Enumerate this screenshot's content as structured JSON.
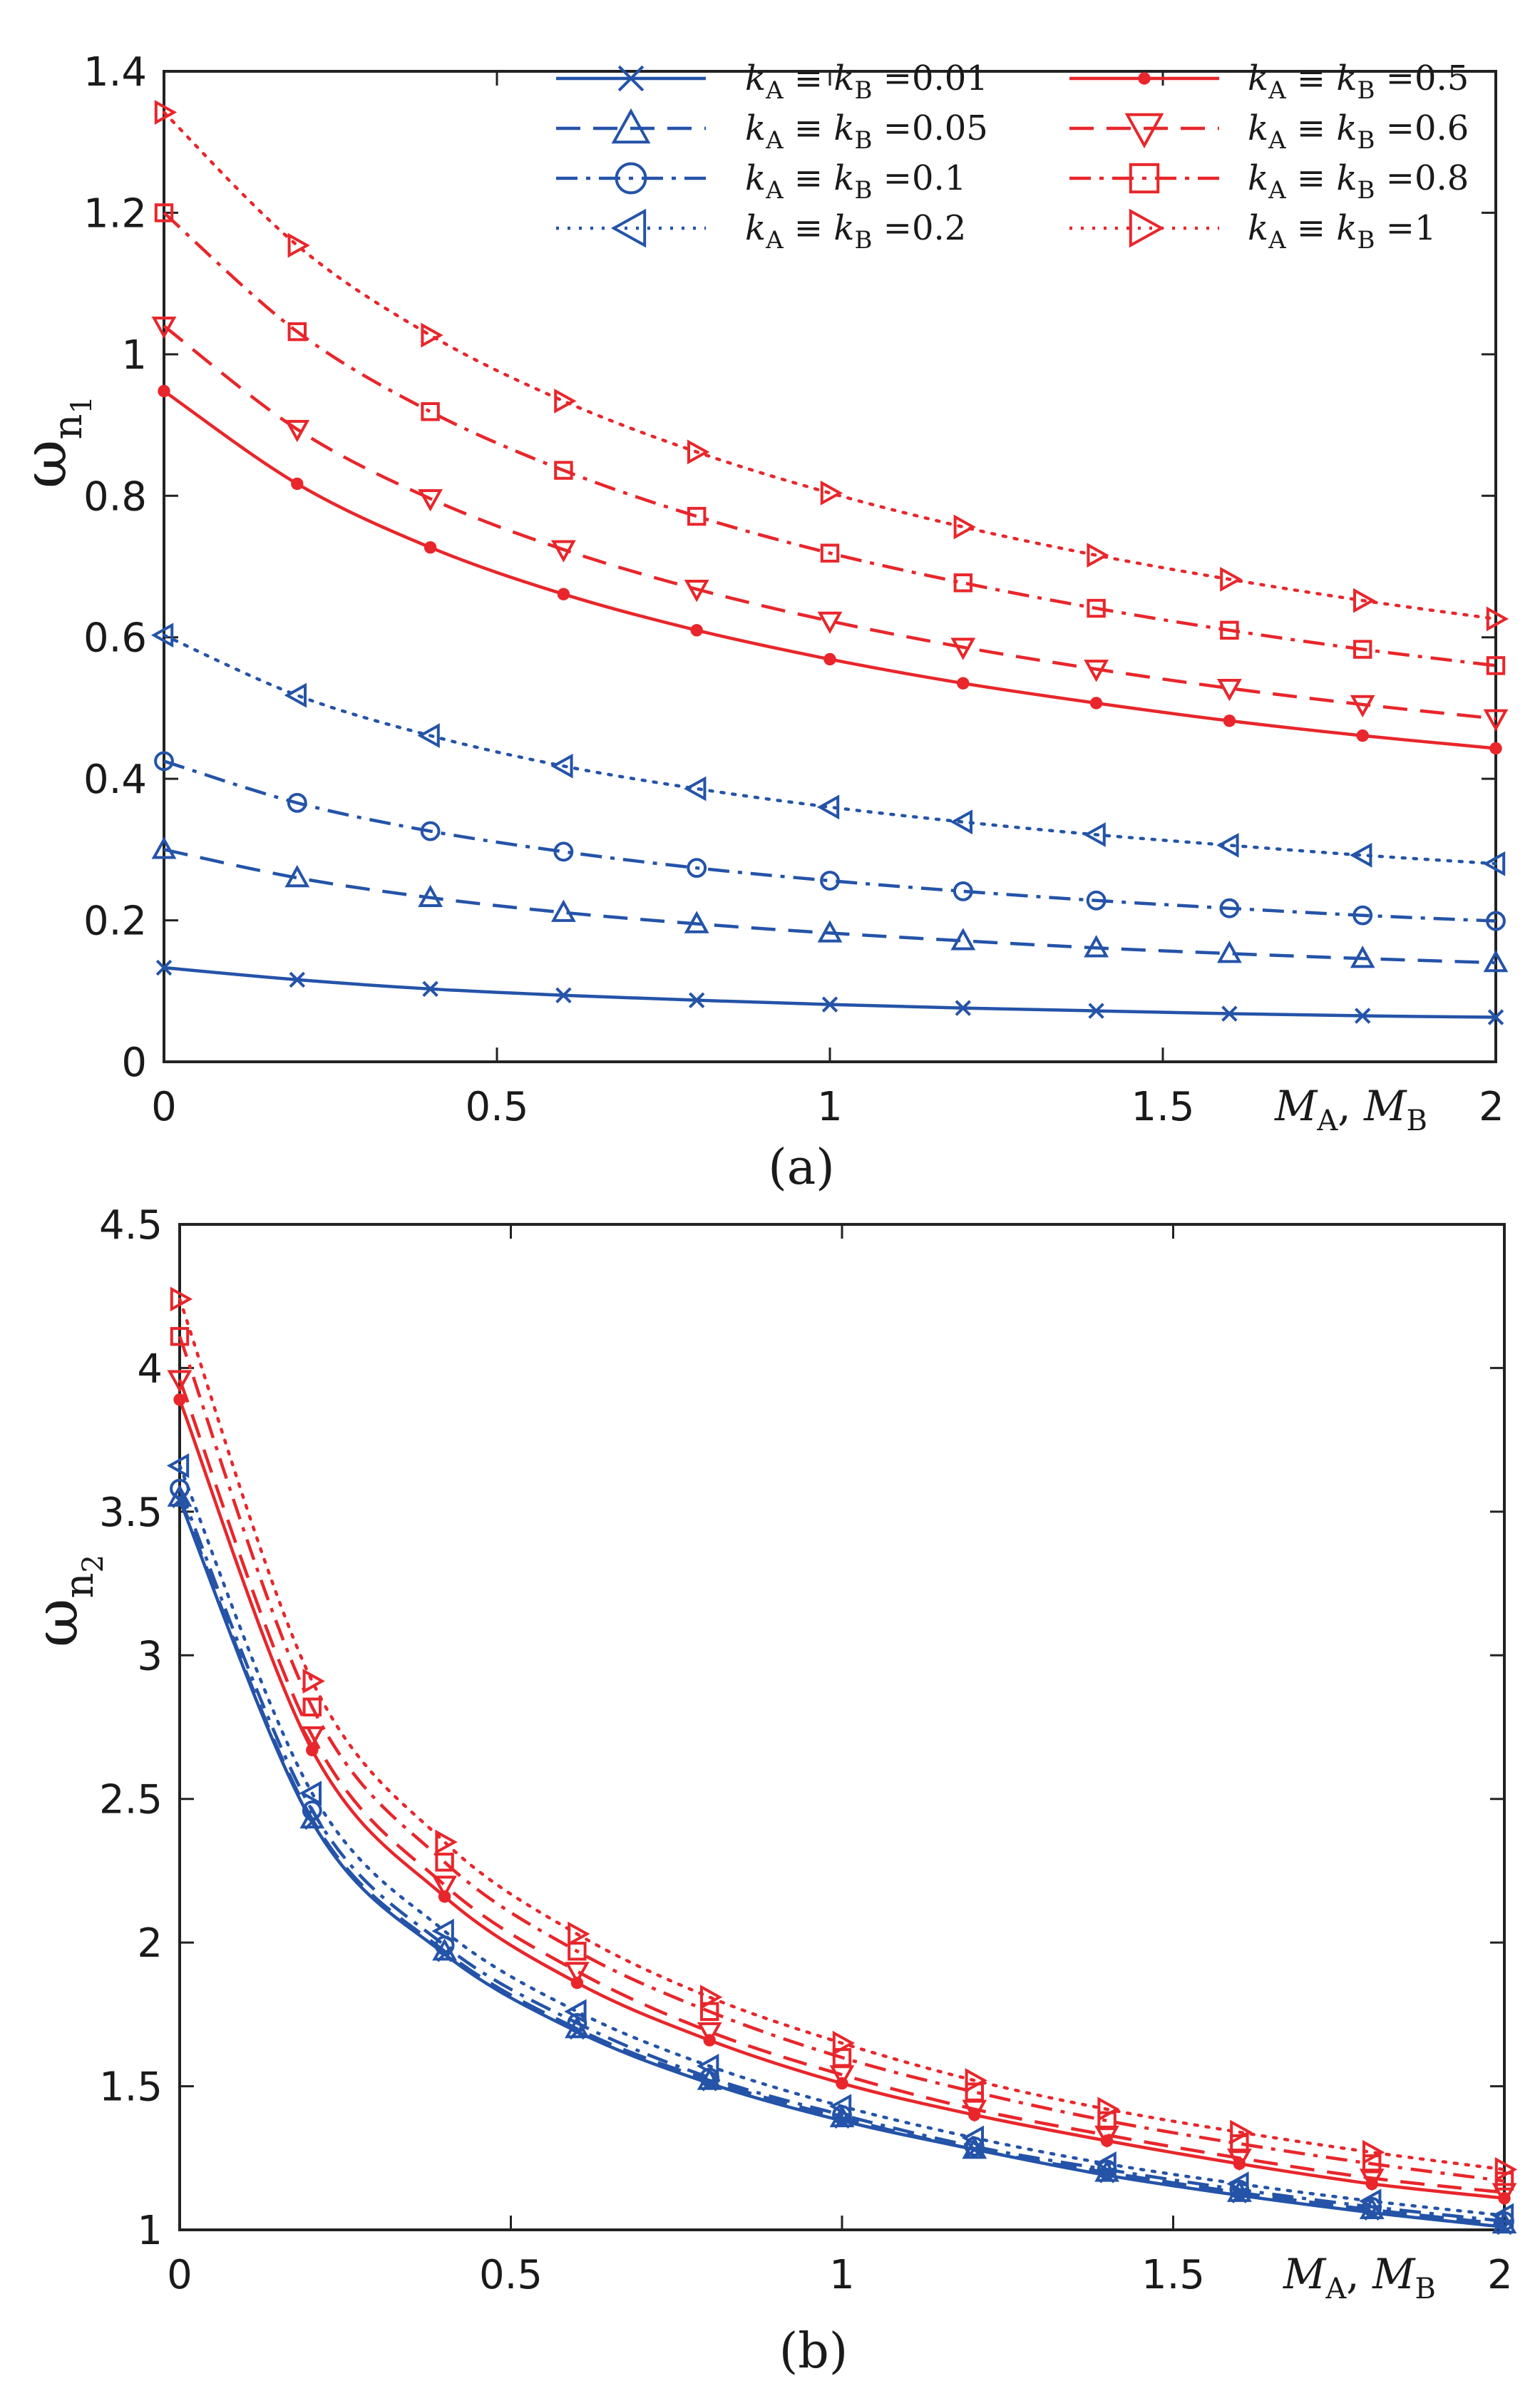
{
  "colors": {
    "blue": "#2453a8",
    "red": "#e8262b"
  },
  "chart_data": [
    {
      "id": "a",
      "type": "line",
      "caption": "(a)",
      "ylabel": "ω",
      "ylabel_sub": "n",
      "ylabel_subsub": "1",
      "xlabel": "M_A, M_B",
      "xlim": [
        0,
        2
      ],
      "ylim": [
        0,
        1.4
      ],
      "xticks": [
        0,
        0.5,
        1,
        1.5,
        2
      ],
      "xtick_labels": [
        "0",
        "0.5",
        "1",
        "1.5",
        ""
      ],
      "x_end_label": "2",
      "yticks": [
        0,
        0.2,
        0.4,
        0.6,
        0.8,
        1.0,
        1.2,
        1.4
      ],
      "ytick_labels": [
        "0",
        "0.2",
        "0.4",
        "0.6",
        "0.8",
        "1",
        "1.2",
        "1.4"
      ],
      "legend_position": "top-right",
      "x": [
        0,
        0.2,
        0.4,
        0.6,
        0.8,
        1.0,
        1.2,
        1.4,
        1.6,
        1.8,
        2.0
      ],
      "series": [
        {
          "name": "k_A ≡ k_B = 0.01",
          "legend_label": "k_A≡k_B=0.01",
          "color": "blue",
          "dash": "solid",
          "marker": "x",
          "values": [
            0.133,
            0.116,
            0.103,
            0.094,
            0.087,
            0.081,
            0.076,
            0.072,
            0.068,
            0.065,
            0.063
          ]
        },
        {
          "name": "k_A ≡ k_B = 0.05",
          "legend_label": "k_A≡k_B=0.05",
          "color": "blue",
          "dash": "dashed",
          "marker": "triangle-up",
          "values": [
            0.3,
            0.26,
            0.232,
            0.211,
            0.195,
            0.182,
            0.171,
            0.161,
            0.153,
            0.146,
            0.14
          ]
        },
        {
          "name": "k_A ≡ k_B = 0.1",
          "legend_label": "k_A≡k_B=0.1",
          "color": "blue",
          "dash": "dashdot",
          "marker": "circle",
          "values": [
            0.425,
            0.366,
            0.326,
            0.297,
            0.274,
            0.256,
            0.241,
            0.228,
            0.217,
            0.207,
            0.199
          ]
        },
        {
          "name": "k_A ≡ k_B = 0.2",
          "legend_label": "k_A≡k_B=0.2",
          "color": "blue",
          "dash": "dotted",
          "marker": "triangle-left",
          "values": [
            0.603,
            0.518,
            0.461,
            0.418,
            0.386,
            0.36,
            0.339,
            0.321,
            0.306,
            0.292,
            0.28
          ]
        },
        {
          "name": "k_A ≡ k_B = 0.5",
          "legend_label": "k_A≡k_B=0.5",
          "color": "red",
          "dash": "solid",
          "marker": "dot",
          "values": [
            0.948,
            0.817,
            0.727,
            0.661,
            0.61,
            0.569,
            0.535,
            0.507,
            0.482,
            0.461,
            0.443
          ]
        },
        {
          "name": "k_A ≡ k_B = 0.6",
          "legend_label": "k_A≡k_B=0.6",
          "color": "red",
          "dash": "dashed",
          "marker": "triangle-down",
          "values": [
            1.04,
            0.894,
            0.796,
            0.724,
            0.668,
            0.623,
            0.586,
            0.555,
            0.528,
            0.505,
            0.485
          ]
        },
        {
          "name": "k_A ≡ k_B = 0.8",
          "legend_label": "k_A≡k_B=0.8",
          "color": "red",
          "dash": "dashdot",
          "marker": "square",
          "values": [
            1.2,
            1.032,
            0.919,
            0.836,
            0.771,
            0.719,
            0.677,
            0.641,
            0.61,
            0.583,
            0.56
          ]
        },
        {
          "name": "k_A ≡ k_B = 1",
          "legend_label": "k_A≡k_B=1",
          "color": "red",
          "dash": "dotted",
          "marker": "triangle-right",
          "values": [
            1.342,
            1.154,
            1.027,
            0.934,
            0.862,
            0.804,
            0.756,
            0.716,
            0.682,
            0.652,
            0.626
          ]
        }
      ]
    },
    {
      "id": "b",
      "type": "line",
      "caption": "(b)",
      "ylabel": "ω",
      "ylabel_sub": "n",
      "ylabel_subsub": "2",
      "xlabel": "M_A, M_B",
      "xlim": [
        0,
        2
      ],
      "ylim": [
        1,
        4.5
      ],
      "xticks": [
        0,
        0.5,
        1,
        1.5,
        2
      ],
      "xtick_labels": [
        "0",
        "0.5",
        "1",
        "1.5",
        ""
      ],
      "x_end_label": "2",
      "yticks": [
        1,
        1.5,
        2,
        2.5,
        3,
        3.5,
        4,
        4.5
      ],
      "ytick_labels": [
        "1",
        "1.5",
        "2",
        "2.5",
        "3",
        "3.5",
        "4",
        "4.5"
      ],
      "x": [
        0,
        0.2,
        0.4,
        0.6,
        0.8,
        1.0,
        1.2,
        1.4,
        1.6,
        1.8,
        2.0
      ],
      "series": [
        {
          "name": "k_A ≡ k_B = 0.01",
          "color": "blue",
          "dash": "solid",
          "marker": "x",
          "values": [
            3.54,
            2.42,
            1.96,
            1.69,
            1.51,
            1.38,
            1.28,
            1.19,
            1.12,
            1.06,
            1.01
          ]
        },
        {
          "name": "k_A ≡ k_B = 0.05",
          "color": "blue",
          "dash": "dashed",
          "marker": "triangle-up",
          "values": [
            3.55,
            2.43,
            1.97,
            1.7,
            1.52,
            1.39,
            1.28,
            1.2,
            1.13,
            1.07,
            1.02
          ]
        },
        {
          "name": "k_A ≡ k_B = 0.1",
          "color": "blue",
          "dash": "dashdot",
          "marker": "circle",
          "values": [
            3.58,
            2.46,
            1.99,
            1.72,
            1.53,
            1.4,
            1.29,
            1.21,
            1.14,
            1.08,
            1.03
          ]
        },
        {
          "name": "k_A ≡ k_B = 0.2",
          "color": "blue",
          "dash": "dotted",
          "marker": "triangle-left",
          "values": [
            3.66,
            2.52,
            2.04,
            1.76,
            1.57,
            1.43,
            1.32,
            1.23,
            1.16,
            1.1,
            1.05
          ]
        },
        {
          "name": "k_A ≡ k_B = 0.5",
          "color": "red",
          "dash": "solid",
          "marker": "dot",
          "values": [
            3.89,
            2.67,
            2.16,
            1.86,
            1.66,
            1.51,
            1.4,
            1.31,
            1.23,
            1.16,
            1.11
          ]
        },
        {
          "name": "k_A ≡ k_B = 0.6",
          "color": "red",
          "dash": "dashed",
          "marker": "triangle-down",
          "values": [
            3.96,
            2.72,
            2.2,
            1.9,
            1.69,
            1.54,
            1.42,
            1.33,
            1.25,
            1.18,
            1.13
          ]
        },
        {
          "name": "k_A ≡ k_B = 0.8",
          "color": "red",
          "dash": "dashdot",
          "marker": "square",
          "values": [
            4.11,
            2.82,
            2.28,
            1.97,
            1.76,
            1.6,
            1.48,
            1.38,
            1.3,
            1.23,
            1.17
          ]
        },
        {
          "name": "k_A ≡ k_B = 1",
          "color": "red",
          "dash": "dotted",
          "marker": "triangle-right",
          "values": [
            4.24,
            2.91,
            2.35,
            2.03,
            1.81,
            1.65,
            1.52,
            1.42,
            1.34,
            1.27,
            1.21
          ]
        }
      ]
    }
  ]
}
